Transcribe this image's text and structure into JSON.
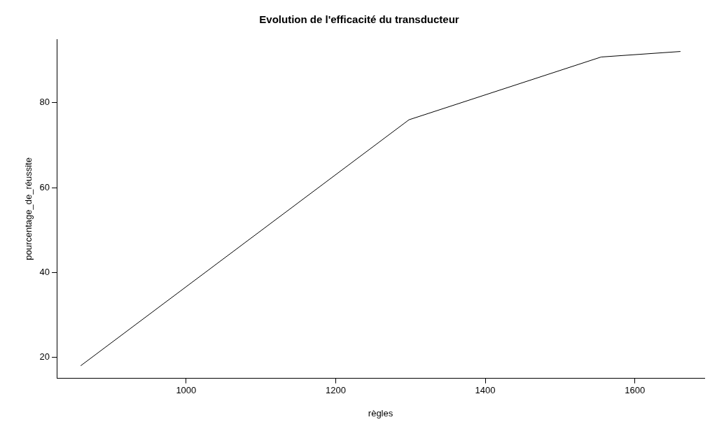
{
  "chart_data": {
    "type": "line",
    "title": "Evolution de l'efficacité du transducteur",
    "xlabel": "règles",
    "ylabel": "pourcentage_de_réussite",
    "x": [
      859,
      1298,
      1555,
      1661
    ],
    "series": [
      {
        "color": "#000000",
        "values": [
          18,
          76,
          90.8,
          92.1
        ]
      }
    ],
    "xlim": [
      827,
      1693
    ],
    "xticks": [
      1000,
      1200,
      1400,
      1600
    ],
    "ylim": [
      15,
      95
    ],
    "yticks": [
      20,
      40,
      60,
      80
    ],
    "grid": false,
    "legend": false
  }
}
